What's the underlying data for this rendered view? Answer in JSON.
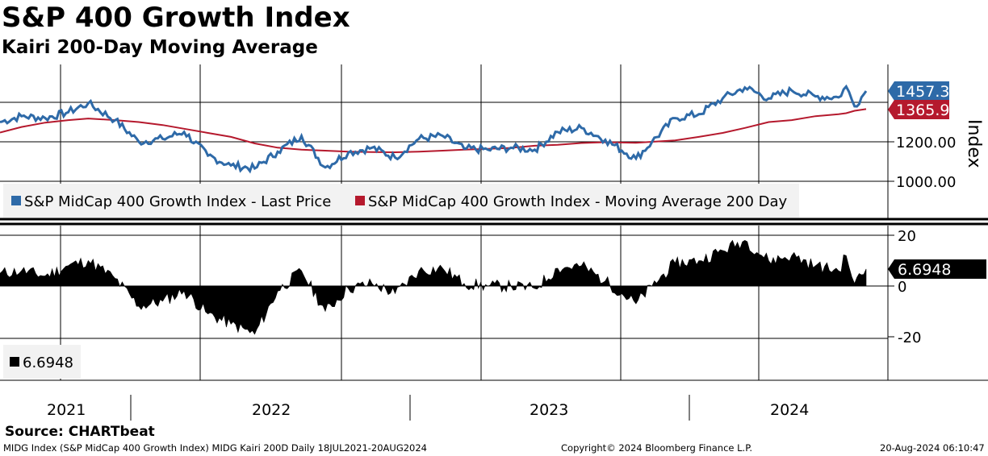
{
  "title": "S&P 400 Growth Index",
  "subtitle": "Kairi 200-Day Moving Average",
  "source": "Source: CHARTbeat",
  "footer": {
    "left": "MIDG Index (S&P MidCap 400 Growth Index) MIDG Kairi 200D  Daily 18JUL2021-20AUG2024",
    "center": "Copyright© 2024 Bloomberg Finance L.P.",
    "right": "20-Aug-2024 06:10:47"
  },
  "colors": {
    "price": "#2e6aa8",
    "ma": "#b5192d",
    "kairi": "#000000",
    "grid": "#000000"
  },
  "chart_data": [
    {
      "type": "line",
      "panel": "upper",
      "ylabel": "Index",
      "yticks": [
        1000,
        1200
      ],
      "yticks_text": [
        "1000.00",
        "1200.00"
      ],
      "ylim": [
        940,
        1560
      ],
      "xtick_labels": [
        "2021",
        "2022",
        "2023",
        "2024"
      ],
      "legend": [
        "S&P MidCap 400 Growth Index - Last Price",
        "S&P MidCap 400 Growth Index - Moving Average 200 Day"
      ],
      "last_values": {
        "price": "1457.34",
        "ma": "1365.90"
      },
      "dates": [
        "2021-07-18",
        "2021-08-15",
        "2021-09-15",
        "2021-10-15",
        "2021-11-10",
        "2021-12-15",
        "2022-01-15",
        "2022-02-15",
        "2022-03-15",
        "2022-04-15",
        "2022-05-15",
        "2022-06-15",
        "2022-07-15",
        "2022-08-15",
        "2022-09-15",
        "2022-10-15",
        "2022-11-15",
        "2022-12-15",
        "2023-01-15",
        "2023-02-15",
        "2023-03-15",
        "2023-04-15",
        "2023-05-15",
        "2023-06-15",
        "2023-07-15",
        "2023-08-15",
        "2023-09-15",
        "2023-10-25",
        "2023-11-15",
        "2023-12-15",
        "2024-01-15",
        "2024-02-15",
        "2024-03-15",
        "2024-04-15",
        "2024-05-15",
        "2024-06-15",
        "2024-07-15",
        "2024-07-25",
        "2024-08-05",
        "2024-08-20"
      ],
      "series": [
        {
          "name": "S&P MidCap 400 Growth Index - Last Price",
          "values": [
            1300,
            1330,
            1320,
            1350,
            1395,
            1310,
            1200,
            1215,
            1250,
            1130,
            1080,
            1065,
            1150,
            1230,
            1070,
            1145,
            1170,
            1120,
            1215,
            1230,
            1165,
            1160,
            1170,
            1160,
            1250,
            1270,
            1210,
            1115,
            1200,
            1320,
            1340,
            1420,
            1475,
            1420,
            1460,
            1430,
            1425,
            1480,
            1380,
            1457.34
          ]
        },
        {
          "name": "S&P MidCap 400 Growth Index - Moving Average 200 Day",
          "values": [
            1247,
            1275,
            1297,
            1310,
            1318,
            1310,
            1300,
            1285,
            1266,
            1245,
            1225,
            1192,
            1170,
            1160,
            1155,
            1150,
            1148,
            1147,
            1150,
            1155,
            1160,
            1164,
            1169,
            1180,
            1185,
            1194,
            1198,
            1195,
            1200,
            1207,
            1225,
            1245,
            1270,
            1300,
            1310,
            1330,
            1340,
            1345,
            1357,
            1365.9
          ]
        }
      ]
    },
    {
      "type": "area",
      "panel": "lower",
      "name": "Kairi 200-Day Moving Average",
      "yticks": [
        -20,
        0,
        20
      ],
      "ylim": [
        -36,
        20
      ],
      "last_value": "6.6948",
      "legend": [
        "6.6948"
      ],
      "dates": [
        "2021-07-18",
        "2021-08-15",
        "2021-09-15",
        "2021-10-15",
        "2021-11-10",
        "2021-12-15",
        "2022-01-15",
        "2022-02-15",
        "2022-03-15",
        "2022-04-15",
        "2022-05-15",
        "2022-06-15",
        "2022-07-15",
        "2022-08-15",
        "2022-09-15",
        "2022-10-15",
        "2022-11-15",
        "2022-12-15",
        "2023-01-15",
        "2023-02-15",
        "2023-03-15",
        "2023-04-15",
        "2023-05-15",
        "2023-06-15",
        "2023-07-15",
        "2023-08-15",
        "2023-09-15",
        "2023-10-25",
        "2023-11-15",
        "2023-12-15",
        "2024-01-15",
        "2024-02-15",
        "2024-03-15",
        "2024-04-15",
        "2024-05-15",
        "2024-06-15",
        "2024-07-15",
        "2024-07-25",
        "2024-08-05",
        "2024-08-20"
      ],
      "values": [
        5,
        6,
        4,
        8,
        10,
        3,
        -8,
        -6,
        -2,
        -11,
        -15,
        -19,
        -2,
        6,
        -10,
        -1,
        1,
        -3,
        6,
        7,
        1,
        0,
        0,
        -1,
        7,
        8,
        2,
        -7,
        0,
        9,
        10,
        14,
        18,
        10,
        12,
        8,
        6,
        12,
        1,
        6.6948
      ]
    }
  ]
}
